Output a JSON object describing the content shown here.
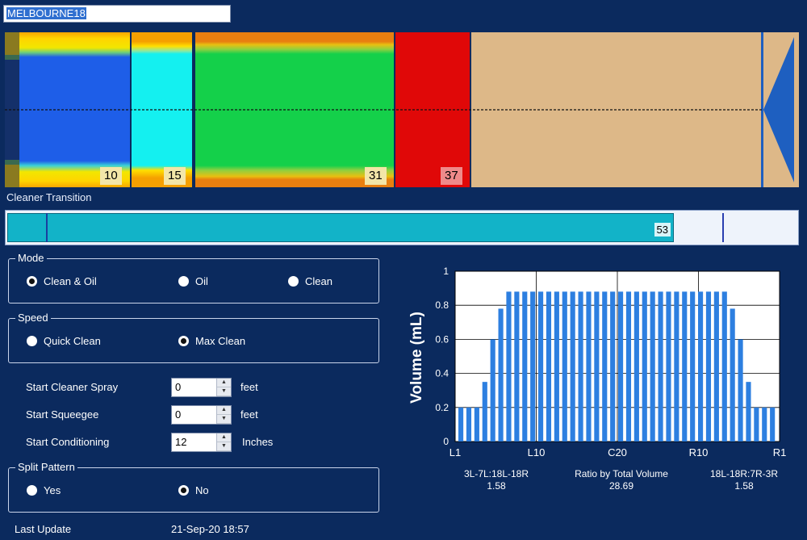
{
  "pattern": {
    "name": "MELBOURNE18"
  },
  "lane": {
    "segment_labels": [
      "10",
      "15",
      "31",
      "37"
    ]
  },
  "cleaner": {
    "title": "Cleaner Transition",
    "value": "53"
  },
  "mode": {
    "legend": "Mode",
    "options": [
      "Clean & Oil",
      "Oil",
      "Clean"
    ],
    "selected": "Clean & Oil"
  },
  "speed": {
    "legend": "Speed",
    "options": [
      "Quick Clean",
      "Max Clean"
    ],
    "selected": "Max Clean"
  },
  "fields": [
    {
      "label": "Start Cleaner Spray",
      "value": "0",
      "unit": "feet"
    },
    {
      "label": "Start Squeegee",
      "value": "0",
      "unit": "feet"
    },
    {
      "label": "Start Conditioning",
      "value": "12",
      "unit": "Inches"
    }
  ],
  "split": {
    "legend": "Split Pattern",
    "options": [
      "Yes",
      "No"
    ],
    "selected": "No"
  },
  "last_update": {
    "label": "Last Update",
    "value": "21-Sep-20 18:57"
  },
  "chart_data": {
    "type": "bar",
    "ylabel": "Volume (mL)",
    "ylim": [
      0,
      1
    ],
    "yticks": [
      "0",
      "0.2",
      "0.4",
      "0.6",
      "0.8",
      "1"
    ],
    "xtick_labels": [
      "L1",
      "L10",
      "C20",
      "R10",
      "R1"
    ],
    "grid": true,
    "values": [
      0.2,
      0.2,
      0.2,
      0.35,
      0.6,
      0.78,
      0.88,
      0.88,
      0.88,
      0.88,
      0.88,
      0.88,
      0.88,
      0.88,
      0.88,
      0.88,
      0.88,
      0.88,
      0.88,
      0.88,
      0.88,
      0.88,
      0.88,
      0.88,
      0.88,
      0.88,
      0.88,
      0.88,
      0.88,
      0.88,
      0.88,
      0.88,
      0.88,
      0.88,
      0.78,
      0.6,
      0.35,
      0.2,
      0.2,
      0.2
    ],
    "colors": {
      "bar": "#2d7fe0",
      "background": "#ffffff"
    }
  },
  "ratios": [
    {
      "label": "3L-7L:18L-18R",
      "value": "1.58"
    },
    {
      "label": "Ratio by Total Volume",
      "value": "28.69"
    },
    {
      "label": "18L-18R:7R-3R",
      "value": "1.58"
    }
  ]
}
